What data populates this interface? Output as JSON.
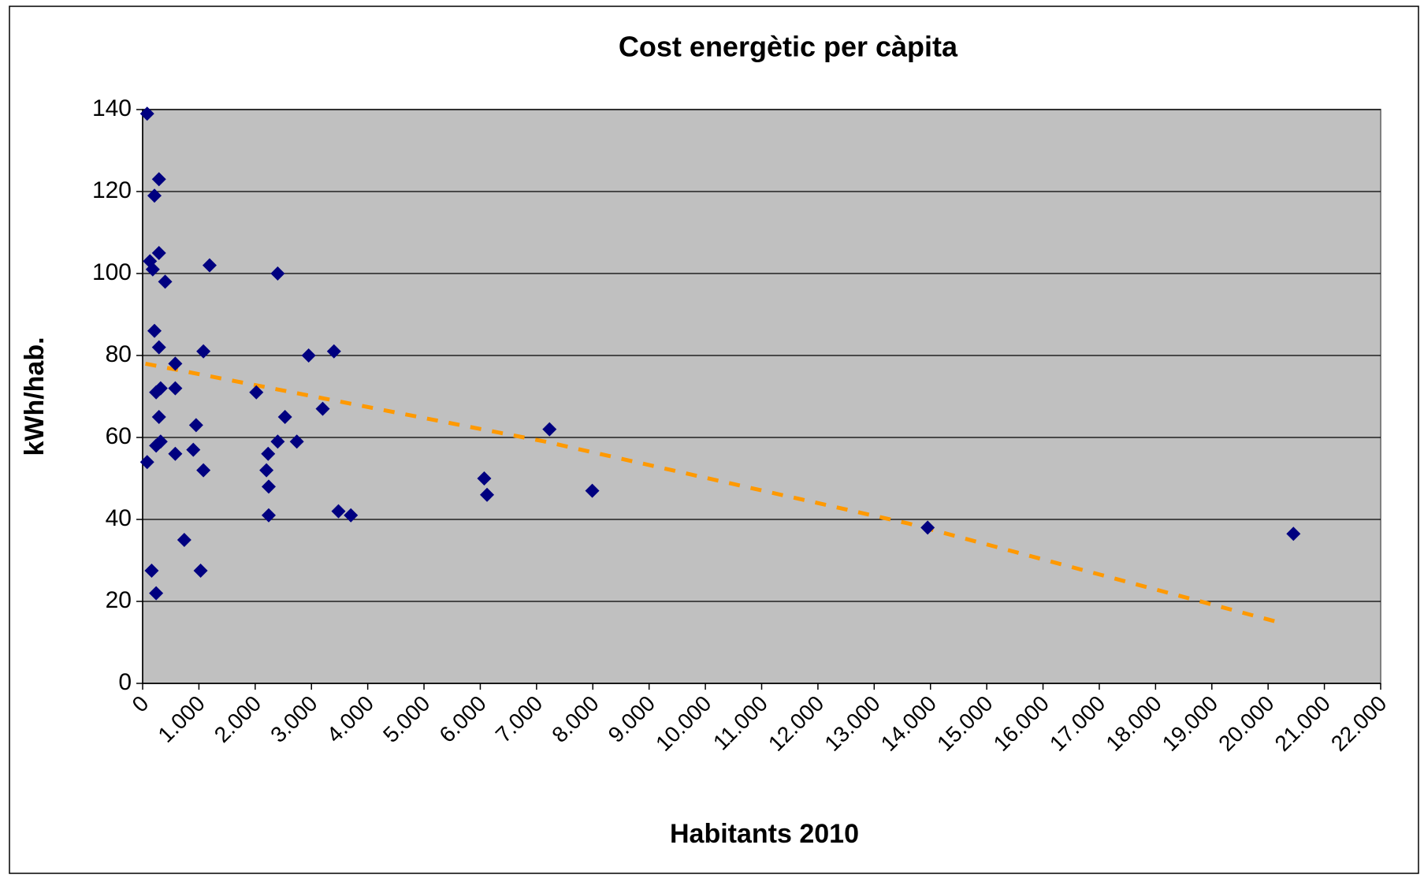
{
  "chart_data": {
    "type": "scatter",
    "title": "Cost energètic per càpita",
    "xlabel": "Habitants 2010",
    "ylabel": "kWh/hab.",
    "color": "#000080",
    "x": [
      80,
      290,
      210,
      290,
      130,
      180,
      400,
      1190,
      2400,
      210,
      290,
      1080,
      580,
      580,
      320,
      240,
      2020,
      290,
      950,
      320,
      240,
      900,
      580,
      80,
      1080,
      2950,
      3400,
      3200,
      2530,
      2400,
      2740,
      2230,
      2200,
      2240,
      2240,
      3480,
      3700,
      740,
      160,
      1030,
      240,
      6070,
      6120,
      7230,
      7990,
      13950,
      20450
    ],
    "values": [
      139,
      123,
      119,
      105,
      103,
      101,
      98,
      102,
      100,
      86,
      82,
      81,
      78,
      72,
      72,
      71,
      71,
      65,
      63,
      59,
      58,
      57,
      56,
      54,
      52,
      80,
      81,
      67,
      65,
      59,
      59,
      56,
      52,
      48,
      41,
      42,
      41,
      35,
      27.5,
      27.5,
      22,
      50,
      46,
      62,
      47,
      38,
      36.5
    ],
    "trend": {
      "color": "#ff9900",
      "x": [
        50,
        7150,
        13610,
        20270
      ],
      "values": [
        78,
        59,
        39,
        14.6
      ]
    },
    "xlim": [
      0,
      22000
    ],
    "xticks": [
      0,
      {
        "value": 1000,
        "label": "1.000"
      },
      {
        "value": 2000,
        "label": "2.000"
      },
      {
        "value": 3000,
        "label": "3.000"
      },
      {
        "value": 4000,
        "label": "4.000"
      },
      {
        "value": 5000,
        "label": "5.000"
      },
      {
        "value": 6000,
        "label": "6.000"
      },
      {
        "value": 7000,
        "label": "7.000"
      },
      {
        "value": 8000,
        "label": "8.000"
      },
      {
        "value": 9000,
        "label": "9.000"
      },
      {
        "value": 10000,
        "label": "10.000"
      },
      {
        "value": 11000,
        "label": "11.000"
      },
      {
        "value": 12000,
        "label": "12.000"
      },
      {
        "value": 13000,
        "label": "13.000"
      },
      {
        "value": 14000,
        "label": "14.000"
      },
      {
        "value": 15000,
        "label": "15.000"
      },
      {
        "value": 16000,
        "label": "16.000"
      },
      {
        "value": 17000,
        "label": "17.000"
      },
      {
        "value": 18000,
        "label": "18.000"
      },
      {
        "value": 19000,
        "label": "19.000"
      },
      {
        "value": 20000,
        "label": "20.000"
      },
      {
        "value": 21000,
        "label": "21.000"
      },
      {
        "value": 22000,
        "label": "22.000"
      }
    ],
    "ylim": [
      0,
      140
    ],
    "yticks": [
      0,
      20,
      40,
      60,
      80,
      100,
      120,
      140
    ],
    "grid": true
  }
}
